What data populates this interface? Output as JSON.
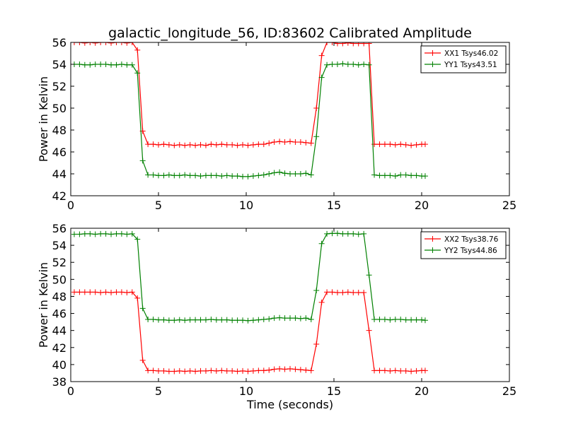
{
  "chart_data": [
    {
      "type": "line",
      "title": "galactic_longitude_56, ID:83602 Calibrated Amplitude",
      "xlabel": "",
      "ylabel": "Power in Kelvin",
      "xlim": [
        0,
        25
      ],
      "ylim": [
        42,
        56
      ],
      "xticks": [
        0,
        5,
        10,
        15,
        20,
        25
      ],
      "yticks": [
        42,
        44,
        46,
        48,
        50,
        52,
        54,
        56
      ],
      "legend_position": "top-right",
      "grid": false,
      "x": [
        0.2,
        0.5,
        0.8,
        1.1,
        1.4,
        1.7,
        2.0,
        2.3,
        2.6,
        2.9,
        3.2,
        3.5,
        3.8,
        4.1,
        4.4,
        4.7,
        5.0,
        5.3,
        5.6,
        5.9,
        6.2,
        6.5,
        6.8,
        7.1,
        7.4,
        7.7,
        8.0,
        8.3,
        8.6,
        8.9,
        9.2,
        9.5,
        9.8,
        10.1,
        10.4,
        10.7,
        11.0,
        11.3,
        11.6,
        11.9,
        12.2,
        12.5,
        12.8,
        13.1,
        13.4,
        13.7,
        14.0,
        14.3,
        14.6,
        14.9,
        15.2,
        15.5,
        15.8,
        16.1,
        16.4,
        16.7,
        17.0,
        17.3,
        17.6,
        17.9,
        18.2,
        18.5,
        18.8,
        19.1,
        19.4,
        19.7,
        20.0,
        20.2
      ],
      "series": [
        {
          "name": "XX1 Tsys46.02",
          "color": "#ff0000",
          "values": [
            56.0,
            56.0,
            55.95,
            56.0,
            55.95,
            56.0,
            56.0,
            55.95,
            56.0,
            56.0,
            55.95,
            56.0,
            55.3,
            47.9,
            46.7,
            46.7,
            46.65,
            46.7,
            46.65,
            46.6,
            46.65,
            46.6,
            46.65,
            46.6,
            46.65,
            46.6,
            46.7,
            46.65,
            46.7,
            46.65,
            46.65,
            46.6,
            46.65,
            46.6,
            46.65,
            46.7,
            46.7,
            46.8,
            46.9,
            46.95,
            46.9,
            46.95,
            46.9,
            46.9,
            46.85,
            46.8,
            50.0,
            54.8,
            56.0,
            56.0,
            55.9,
            55.9,
            55.95,
            55.9,
            55.9,
            55.9,
            55.9,
            46.7,
            46.7,
            46.7,
            46.7,
            46.65,
            46.7,
            46.65,
            46.6,
            46.65,
            46.7,
            46.7
          ]
        },
        {
          "name": "YY1 Tsys43.51",
          "color": "#008000",
          "values": [
            54.0,
            54.0,
            53.95,
            53.95,
            54.0,
            54.0,
            54.0,
            53.95,
            53.95,
            54.0,
            53.95,
            53.95,
            53.2,
            45.2,
            43.9,
            43.9,
            43.85,
            43.85,
            43.9,
            43.85,
            43.85,
            43.9,
            43.85,
            43.85,
            43.8,
            43.85,
            43.85,
            43.85,
            43.8,
            43.85,
            43.8,
            43.8,
            43.75,
            43.75,
            43.8,
            43.85,
            43.9,
            44.0,
            44.1,
            44.15,
            44.05,
            44.0,
            44.0,
            44.0,
            44.05,
            43.9,
            47.4,
            52.8,
            53.95,
            54.0,
            54.0,
            54.05,
            54.0,
            54.0,
            53.95,
            54.0,
            53.95,
            43.9,
            43.85,
            43.85,
            43.85,
            43.8,
            43.9,
            43.9,
            43.85,
            43.85,
            43.8,
            43.8
          ]
        }
      ]
    },
    {
      "type": "line",
      "title": "",
      "xlabel": "Time (seconds)",
      "ylabel": "Power in Kelvin",
      "xlim": [
        0,
        25
      ],
      "ylim": [
        38,
        56
      ],
      "xticks": [
        0,
        5,
        10,
        15,
        20,
        25
      ],
      "yticks": [
        38,
        40,
        42,
        44,
        46,
        48,
        50,
        52,
        54,
        56
      ],
      "legend_position": "top-right",
      "grid": false,
      "x": [
        0.2,
        0.5,
        0.8,
        1.1,
        1.4,
        1.7,
        2.0,
        2.3,
        2.6,
        2.9,
        3.2,
        3.5,
        3.8,
        4.1,
        4.4,
        4.7,
        5.0,
        5.3,
        5.6,
        5.9,
        6.2,
        6.5,
        6.8,
        7.1,
        7.4,
        7.7,
        8.0,
        8.3,
        8.6,
        8.9,
        9.2,
        9.5,
        9.8,
        10.1,
        10.4,
        10.7,
        11.0,
        11.3,
        11.6,
        11.9,
        12.2,
        12.5,
        12.8,
        13.1,
        13.4,
        13.7,
        14.0,
        14.3,
        14.6,
        14.9,
        15.2,
        15.5,
        15.8,
        16.1,
        16.4,
        16.7,
        17.0,
        17.3,
        17.6,
        17.9,
        18.2,
        18.5,
        18.8,
        19.1,
        19.4,
        19.7,
        20.0,
        20.2
      ],
      "series": [
        {
          "name": "XX2 Tsys38.76",
          "color": "#ff0000",
          "values": [
            48.5,
            48.5,
            48.5,
            48.5,
            48.5,
            48.45,
            48.5,
            48.45,
            48.5,
            48.5,
            48.45,
            48.5,
            47.8,
            40.5,
            39.3,
            39.3,
            39.25,
            39.25,
            39.2,
            39.2,
            39.25,
            39.2,
            39.25,
            39.2,
            39.25,
            39.25,
            39.3,
            39.25,
            39.3,
            39.25,
            39.25,
            39.2,
            39.25,
            39.2,
            39.25,
            39.3,
            39.3,
            39.35,
            39.45,
            39.5,
            39.45,
            39.5,
            39.45,
            39.4,
            39.35,
            39.3,
            42.4,
            47.3,
            48.5,
            48.5,
            48.45,
            48.45,
            48.5,
            48.45,
            48.45,
            48.45,
            44.0,
            39.3,
            39.3,
            39.3,
            39.25,
            39.3,
            39.25,
            39.25,
            39.2,
            39.25,
            39.3,
            39.3
          ]
        },
        {
          "name": "YY2 Tsys44.86",
          "color": "#008000",
          "values": [
            55.3,
            55.3,
            55.35,
            55.35,
            55.3,
            55.35,
            55.35,
            55.3,
            55.35,
            55.35,
            55.3,
            55.35,
            54.7,
            46.6,
            45.3,
            45.3,
            45.25,
            45.25,
            45.2,
            45.2,
            45.25,
            45.2,
            45.25,
            45.25,
            45.25,
            45.25,
            45.3,
            45.25,
            45.25,
            45.25,
            45.2,
            45.2,
            45.2,
            45.15,
            45.2,
            45.25,
            45.3,
            45.35,
            45.45,
            45.5,
            45.45,
            45.45,
            45.45,
            45.4,
            45.45,
            45.3,
            48.7,
            54.2,
            55.35,
            55.4,
            55.4,
            55.35,
            55.35,
            55.35,
            55.3,
            55.35,
            50.5,
            45.3,
            45.3,
            45.3,
            45.25,
            45.3,
            45.3,
            45.25,
            45.25,
            45.25,
            45.25,
            45.2
          ]
        }
      ]
    }
  ]
}
